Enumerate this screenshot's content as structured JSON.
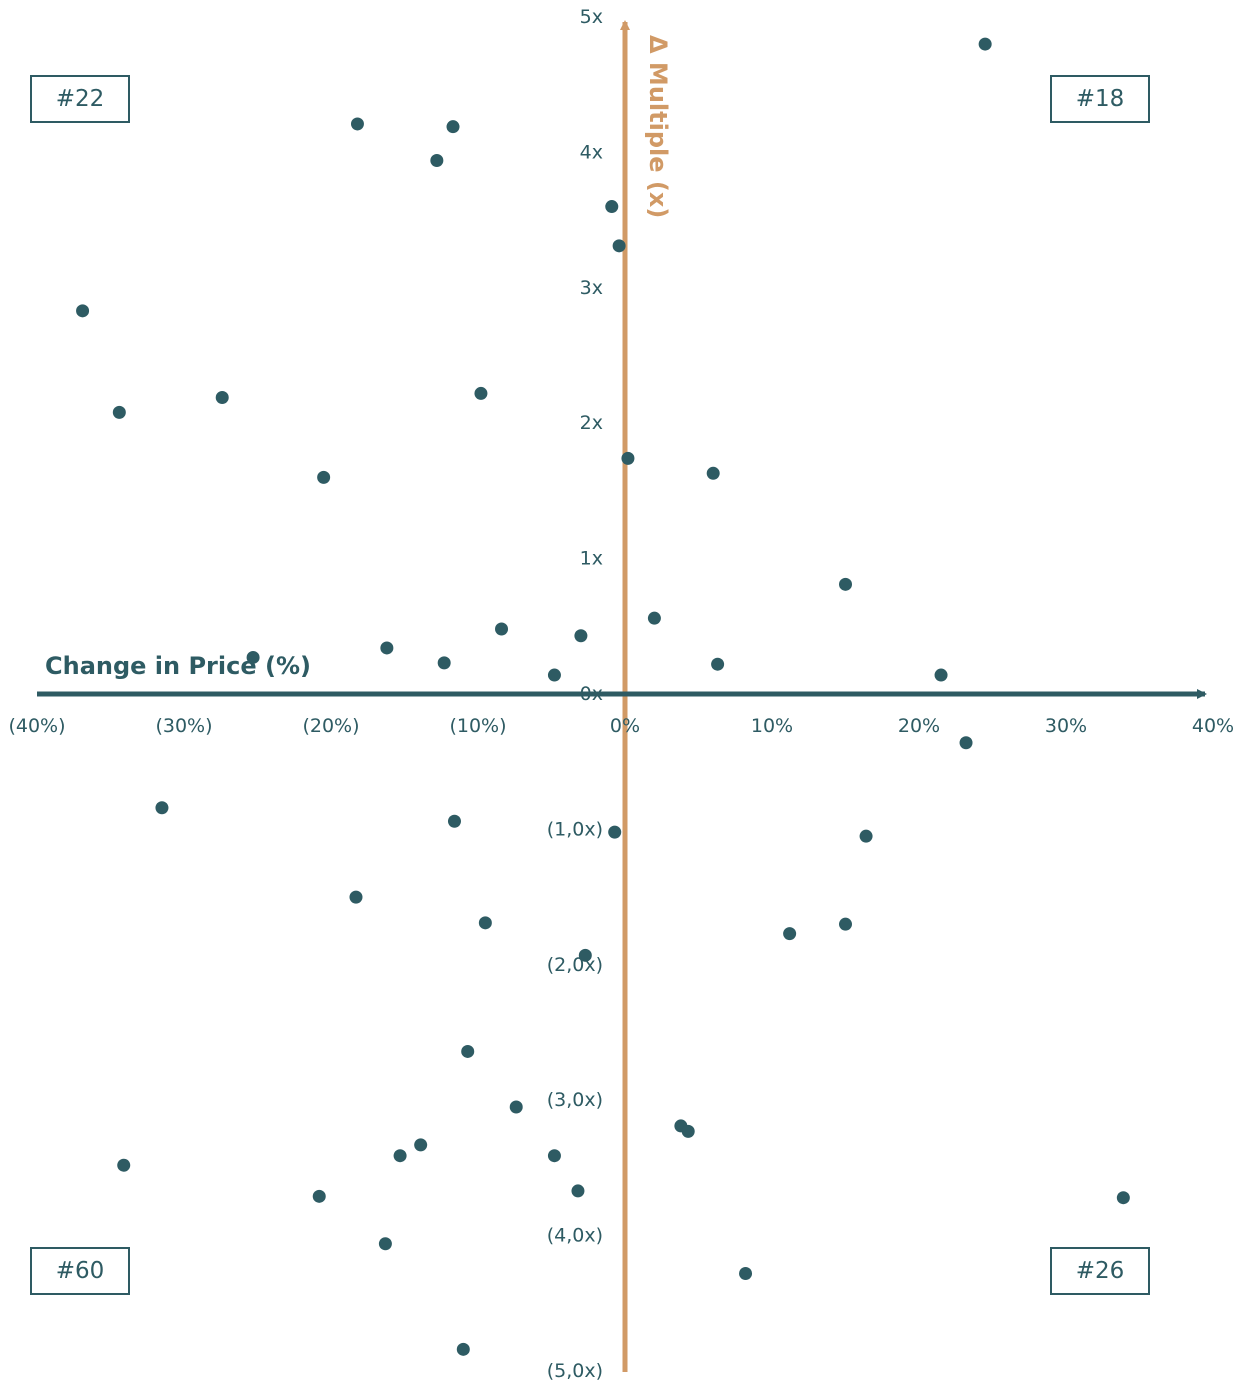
{
  "chart_data": {
    "type": "scatter",
    "xlabel": "Change in Price (%)",
    "ylabel": "Δ Multiple (x)",
    "xlim": [
      -40,
      40
    ],
    "ylim": [
      -5,
      5
    ],
    "x_ticks": [
      {
        "value": -40,
        "label": "(40%)"
      },
      {
        "value": -30,
        "label": "(30%)"
      },
      {
        "value": -20,
        "label": "(20%)"
      },
      {
        "value": -10,
        "label": "(10%)"
      },
      {
        "value": 0,
        "label": "0%"
      },
      {
        "value": 10,
        "label": "10%"
      },
      {
        "value": 20,
        "label": "20%"
      },
      {
        "value": 30,
        "label": "30%"
      },
      {
        "value": 40,
        "label": "40%"
      }
    ],
    "y_ticks": [
      {
        "value": 5,
        "label": "5x"
      },
      {
        "value": 4,
        "label": "4x"
      },
      {
        "value": 3,
        "label": "3x"
      },
      {
        "value": 2,
        "label": "2x"
      },
      {
        "value": 1,
        "label": "1x"
      },
      {
        "value": 0,
        "label": "0x"
      },
      {
        "value": -1,
        "label": "(1,0x)"
      },
      {
        "value": -2,
        "label": "(2,0x)"
      },
      {
        "value": -3,
        "label": "(3,0x)"
      },
      {
        "value": -4,
        "label": "(4,0x)"
      },
      {
        "value": -5,
        "label": "(5,0x)"
      }
    ],
    "quadrant_labels": {
      "top_left": "#22",
      "top_right": "#18",
      "bottom_left": "#60",
      "bottom_right": "#26"
    },
    "colors": {
      "points": "#2e5b63",
      "x_axis": "#2e5b63",
      "y_axis": "#d19a66",
      "y_label": "#d19a66"
    },
    "points": [
      {
        "x": 24.5,
        "y": 4.8
      },
      {
        "x": -18.2,
        "y": 4.21
      },
      {
        "x": -11.7,
        "y": 4.19
      },
      {
        "x": -12.8,
        "y": 3.94
      },
      {
        "x": -0.9,
        "y": 3.6
      },
      {
        "x": -0.4,
        "y": 3.31
      },
      {
        "x": -36.9,
        "y": 2.83
      },
      {
        "x": -34.4,
        "y": 2.08
      },
      {
        "x": -27.4,
        "y": 2.19
      },
      {
        "x": -9.8,
        "y": 2.22
      },
      {
        "x": -20.5,
        "y": 1.6
      },
      {
        "x": 0.2,
        "y": 1.74
      },
      {
        "x": 6.0,
        "y": 1.63
      },
      {
        "x": 15.0,
        "y": 0.81
      },
      {
        "x": 2.0,
        "y": 0.56
      },
      {
        "x": -8.4,
        "y": 0.48
      },
      {
        "x": -3.0,
        "y": 0.43
      },
      {
        "x": -25.3,
        "y": 0.27
      },
      {
        "x": -16.2,
        "y": 0.34
      },
      {
        "x": -12.3,
        "y": 0.23
      },
      {
        "x": 6.3,
        "y": 0.22
      },
      {
        "x": -4.8,
        "y": 0.14
      },
      {
        "x": 21.5,
        "y": 0.14
      },
      {
        "x": 23.2,
        "y": -0.36
      },
      {
        "x": -31.5,
        "y": -0.84
      },
      {
        "x": -11.6,
        "y": -0.94
      },
      {
        "x": -0.7,
        "y": -1.02
      },
      {
        "x": 16.4,
        "y": -1.05
      },
      {
        "x": -18.3,
        "y": -1.5
      },
      {
        "x": -9.5,
        "y": -1.69
      },
      {
        "x": 15.0,
        "y": -1.7
      },
      {
        "x": 11.2,
        "y": -1.77
      },
      {
        "x": -2.7,
        "y": -1.93
      },
      {
        "x": -10.7,
        "y": -2.64
      },
      {
        "x": -7.4,
        "y": -3.05
      },
      {
        "x": 3.8,
        "y": -3.19
      },
      {
        "x": 4.3,
        "y": -3.23
      },
      {
        "x": -13.9,
        "y": -3.33
      },
      {
        "x": -15.3,
        "y": -3.41
      },
      {
        "x": -4.8,
        "y": -3.41
      },
      {
        "x": -34.1,
        "y": -3.48
      },
      {
        "x": -3.2,
        "y": -3.67
      },
      {
        "x": -20.8,
        "y": -3.71
      },
      {
        "x": 33.9,
        "y": -3.72
      },
      {
        "x": -16.3,
        "y": -4.06
      },
      {
        "x": 8.2,
        "y": -4.28
      },
      {
        "x": -11.0,
        "y": -4.84
      }
    ]
  }
}
